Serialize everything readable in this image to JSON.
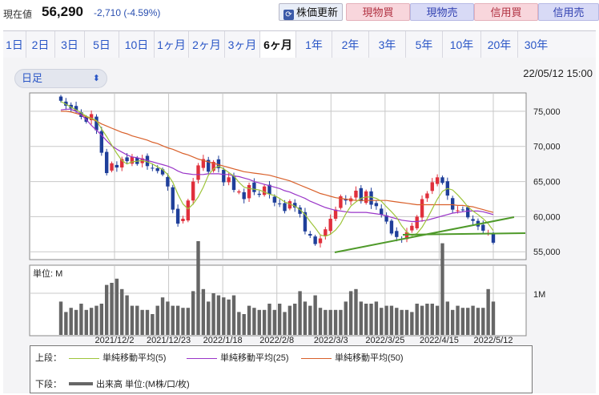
{
  "header": {
    "label": "現在値",
    "price": "56,290",
    "change": "-2,710 (-4.59%)",
    "update_button": "株価更新",
    "buttons": [
      "現物買",
      "現物売",
      "信用買",
      "信用売"
    ]
  },
  "tabs": [
    "1日",
    "2日",
    "3日",
    "5日",
    "10日",
    "1ヶ月",
    "2ヶ月",
    "3ヶ月",
    "6ヶ月",
    "1年",
    "2年",
    "3年",
    "5年",
    "10年",
    "20年",
    "30年"
  ],
  "active_tab": "6ヶ月",
  "period_select": "日足",
  "timestamp": "22/05/12 15:00",
  "legend": {
    "upper_label": "上段：",
    "lower_label": "下段：",
    "ma5": "単純移動平均(5)",
    "ma25": "単純移動平均(25)",
    "ma50": "単純移動平均(50)",
    "volume": "出来高 単位:(M株/口/枚)"
  },
  "colors": {
    "ma5": "#9ec43a",
    "ma25": "#9a36c8",
    "ma50": "#d9602a",
    "up": "#e0303c",
    "down": "#1f3f9a",
    "trend": "#4f9a2a",
    "volume": "#666666"
  },
  "chart_data": [
    {
      "type": "candlestick",
      "x_ticks": [
        "2021/12/2",
        "2021/12/23",
        "2022/1/18",
        "2022/2/8",
        "2022/3/3",
        "2022/3/25",
        "2022/4/15",
        "2022/5/12"
      ],
      "y_ticks": [
        "75,000",
        "70,000",
        "65,000",
        "60,000",
        "55,000"
      ],
      "ylim": [
        54000,
        77500
      ],
      "close": [
        76500,
        75800,
        75400,
        75100,
        74200,
        73500,
        74600,
        72300,
        69100,
        66200,
        67600,
        67000,
        68200,
        67900,
        68500,
        67500,
        68300,
        67200,
        66900,
        66500,
        66000,
        64300,
        61000,
        59000,
        59700,
        62300,
        65000,
        67300,
        68200,
        66400,
        67800,
        66900,
        64900,
        65600,
        63800,
        63600,
        62500,
        64500,
        63500,
        63100,
        64300,
        63200,
        62000,
        61800,
        60800,
        62200,
        61300,
        60400,
        57900,
        57300,
        56100,
        56900,
        58200,
        59700,
        61000,
        62900,
        62300,
        62600,
        63700,
        62200,
        63600,
        61700,
        61500,
        60300,
        59300,
        57600,
        57100,
        56800,
        57800,
        58700,
        60000,
        62500,
        63300,
        64900,
        65600,
        64800,
        63000,
        61000,
        60900,
        61000,
        59900,
        59400,
        58600,
        58000,
        57700,
        56290
      ],
      "ma5": [
        76400,
        76000,
        75600,
        75200,
        74800,
        74300,
        74000,
        73700,
        72500,
        71400,
        70200,
        69000,
        68000,
        67500,
        67800,
        67900,
        68000,
        67800,
        67500,
        67100,
        66700,
        66000,
        64900,
        63200,
        61800,
        61100,
        61800,
        62800,
        64200,
        65900,
        66800,
        67200,
        66800,
        66300,
        65800,
        64900,
        64200,
        64000,
        63900,
        63800,
        63500,
        63200,
        63000,
        62600,
        62100,
        61800,
        61500,
        61000,
        60300,
        59300,
        58400,
        57400,
        57200,
        57500,
        58100,
        59000,
        60400,
        61500,
        62100,
        62600,
        62800,
        62800,
        62600,
        62200,
        61400,
        60700,
        59900,
        58700,
        57800,
        57300,
        57600,
        58500,
        59700,
        61100,
        62500,
        63600,
        64000,
        63800,
        63100,
        62300,
        61400,
        60800,
        60300,
        59700,
        59000,
        58000
      ],
      "ma25": [
        75200,
        75300,
        75300,
        75000,
        74500,
        73800,
        73000,
        72300,
        71600,
        70800,
        70100,
        69600,
        69200,
        68800,
        68500,
        68400,
        68200,
        68000,
        67800,
        67600,
        67400,
        67200,
        66900,
        66500,
        66200,
        66100,
        66000,
        66000,
        66000,
        66100,
        66100,
        66100,
        66000,
        66000,
        65800,
        65700,
        65500,
        65300,
        65000,
        64800,
        64600,
        64400,
        64200,
        64000,
        63700,
        63500,
        63200,
        62900,
        62600,
        62200,
        61900,
        61600,
        61300,
        61100,
        60900,
        60800,
        60700,
        60600,
        60600,
        60600,
        60600,
        60500,
        60400,
        60300,
        60100,
        59900,
        59700,
        59500,
        59400,
        59300,
        59300,
        59400,
        59500,
        59700,
        59900,
        60100,
        60300,
        60500,
        60600,
        60700,
        60800,
        60800,
        60800,
        60700,
        60500,
        60300
      ],
      "ma50": [
        75000,
        75000,
        74900,
        74700,
        74500,
        74200,
        73900,
        73600,
        73200,
        72900,
        72600,
        72300,
        72000,
        71800,
        71500,
        71300,
        71100,
        70900,
        70600,
        70400,
        70100,
        69800,
        69600,
        69300,
        69000,
        68800,
        68500,
        68200,
        68000,
        67800,
        67600,
        67400,
        67200,
        67000,
        66800,
        66600,
        66400,
        66300,
        66200,
        66100,
        66000,
        65900,
        65700,
        65500,
        65300,
        65100,
        64800,
        64500,
        64200,
        63900,
        63600,
        63300,
        63100,
        62900,
        62700,
        62600,
        62500,
        62400,
        62300,
        62300,
        62300,
        62300,
        62300,
        62300,
        62300,
        62200,
        62100,
        62000,
        61900,
        61800,
        61700,
        61700,
        61700,
        61700,
        61700,
        61700,
        61700,
        61700,
        61600,
        61600,
        61500,
        61400,
        61200,
        61000,
        60800,
        60600
      ],
      "volume": [
        16,
        11,
        13,
        12,
        15,
        12,
        13,
        14,
        15,
        24,
        25,
        27,
        22,
        19,
        14,
        14,
        12,
        12,
        10,
        14,
        18,
        16,
        14,
        14,
        13,
        13,
        21,
        45,
        22,
        16,
        20,
        19,
        18,
        17,
        19,
        11,
        10,
        14,
        13,
        12,
        12,
        15,
        12,
        15,
        11,
        14,
        15,
        21,
        16,
        14,
        19,
        13,
        12,
        12,
        12,
        12,
        16,
        21,
        22,
        16,
        15,
        15,
        16,
        13,
        14,
        14,
        13,
        12,
        12,
        11,
        15,
        14,
        15,
        15,
        14,
        44,
        16,
        12,
        14,
        13,
        13,
        14,
        13,
        13,
        22,
        16
      ]
    },
    {
      "type": "bar",
      "title": "単位: M",
      "y_ticks": [
        "1M"
      ]
    }
  ]
}
